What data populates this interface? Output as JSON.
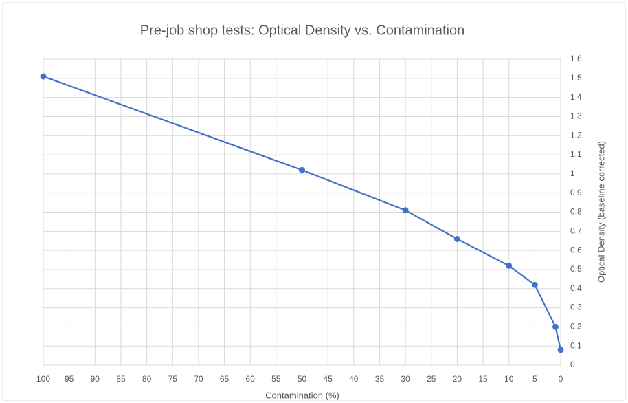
{
  "chart_data": {
    "type": "line",
    "title": "Pre-job shop tests: Optical Density vs. Contamination",
    "x_label": "Contamination (%)",
    "y_label": "Optical Density (baseline corrected)",
    "x": [
      100,
      50,
      30,
      20,
      10,
      5,
      1,
      0
    ],
    "series": [
      {
        "name": "Optical Density",
        "color": "#4472c4",
        "values": [
          1.51,
          1.02,
          0.81,
          0.66,
          0.52,
          0.42,
          0.2,
          0.08
        ]
      }
    ],
    "xlim": [
      100,
      0
    ],
    "xticks": [
      100,
      95,
      90,
      85,
      80,
      75,
      70,
      65,
      60,
      55,
      50,
      45,
      40,
      35,
      30,
      25,
      20,
      15,
      10,
      5,
      0
    ],
    "ylim": [
      0,
      1.6
    ],
    "yticks": [
      0,
      0.1,
      0.2,
      0.3,
      0.4,
      0.5,
      0.6,
      0.7,
      0.8,
      0.9,
      1,
      1.1,
      1.2,
      1.3,
      1.4,
      1.5,
      1.6
    ],
    "y_axis_side": "right",
    "grid": true
  }
}
